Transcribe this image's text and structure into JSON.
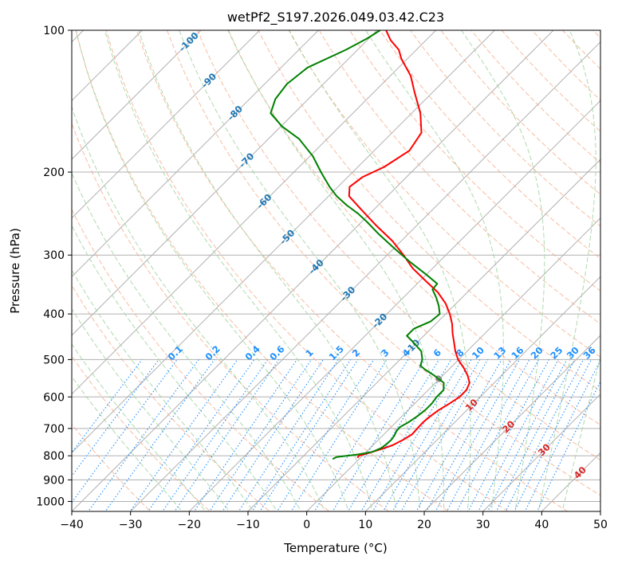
{
  "chart_data": {
    "type": "skew-t log-p",
    "title": "wetPf2_S197.2026.049.03.42.C23",
    "xlabel": "Temperature (°C)",
    "ylabel": "Pressure (hPa)",
    "xlim": [
      -40,
      50
    ],
    "ylim_hpa": [
      1050,
      100
    ],
    "x_ticks": [
      "−40",
      "−30",
      "−20",
      "−10",
      "0",
      "10",
      "20",
      "30",
      "40",
      "50"
    ],
    "x_tick_values": [
      -40,
      -30,
      -20,
      -10,
      0,
      10,
      20,
      30,
      40,
      50
    ],
    "y_ticks": [
      "100",
      "200",
      "300",
      "400",
      "500",
      "600",
      "700",
      "800",
      "900",
      "1000"
    ],
    "y_tick_values": [
      100,
      200,
      300,
      400,
      500,
      600,
      700,
      800,
      900,
      1000
    ],
    "grid": true,
    "series": [
      {
        "name": "temperature",
        "color": "#ff0000",
        "points": [
          {
            "p": 808,
            "t": -0.5
          },
          {
            "p": 800,
            "t": -0.6
          },
          {
            "p": 790,
            "t": 0.5
          },
          {
            "p": 775,
            "t": 2.0
          },
          {
            "p": 760,
            "t": 3.3
          },
          {
            "p": 740,
            "t": 4.2
          },
          {
            "p": 720,
            "t": 4.8
          },
          {
            "p": 700,
            "t": 4.7
          },
          {
            "p": 680,
            "t": 4.6
          },
          {
            "p": 660,
            "t": 4.8
          },
          {
            "p": 640,
            "t": 5.2
          },
          {
            "p": 620,
            "t": 5.9
          },
          {
            "p": 600,
            "t": 6.5
          },
          {
            "p": 580,
            "t": 6.5
          },
          {
            "p": 560,
            "t": 5.8
          },
          {
            "p": 540,
            "t": 4.2
          },
          {
            "p": 520,
            "t": 2.2
          },
          {
            "p": 500,
            "t": -0.1
          },
          {
            "p": 480,
            "t": -2.0
          },
          {
            "p": 460,
            "t": -3.7
          },
          {
            "p": 440,
            "t": -5.5
          },
          {
            "p": 420,
            "t": -7.2
          },
          {
            "p": 400,
            "t": -9.3
          },
          {
            "p": 380,
            "t": -11.8
          },
          {
            "p": 360,
            "t": -15.0
          },
          {
            "p": 340,
            "t": -19.1
          },
          {
            "p": 320,
            "t": -23.4
          },
          {
            "p": 300,
            "t": -27.2
          },
          {
            "p": 280,
            "t": -31.5
          },
          {
            "p": 260,
            "t": -36.8
          },
          {
            "p": 240,
            "t": -42.2
          },
          {
            "p": 225,
            "t": -46.5
          },
          {
            "p": 215,
            "t": -48.0
          },
          {
            "p": 205,
            "t": -47.5
          },
          {
            "p": 195,
            "t": -45.5
          },
          {
            "p": 180,
            "t": -44.0
          },
          {
            "p": 165,
            "t": -45.0
          },
          {
            "p": 150,
            "t": -48.5
          },
          {
            "p": 135,
            "t": -53.2
          },
          {
            "p": 125,
            "t": -56.5
          },
          {
            "p": 115,
            "t": -61.0
          },
          {
            "p": 110,
            "t": -63.0
          },
          {
            "p": 105,
            "t": -66.0
          },
          {
            "p": 100,
            "t": -68.5
          }
        ]
      },
      {
        "name": "dewpoint",
        "color": "#008000",
        "points": [
          {
            "p": 813,
            "t": -4.5
          },
          {
            "p": 805,
            "t": -4.2
          },
          {
            "p": 795,
            "t": -1.0
          },
          {
            "p": 785,
            "t": 1.0
          },
          {
            "p": 770,
            "t": 1.9
          },
          {
            "p": 755,
            "t": 2.1
          },
          {
            "p": 740,
            "t": 2.2
          },
          {
            "p": 725,
            "t": 2.0
          },
          {
            "p": 710,
            "t": 1.6
          },
          {
            "p": 695,
            "t": 1.5
          },
          {
            "p": 680,
            "t": 2.1
          },
          {
            "p": 660,
            "t": 2.6
          },
          {
            "p": 640,
            "t": 2.9
          },
          {
            "p": 620,
            "t": 2.9
          },
          {
            "p": 600,
            "t": 2.6
          },
          {
            "p": 580,
            "t": 2.6
          },
          {
            "p": 560,
            "t": 1.4
          },
          {
            "p": 540,
            "t": -1.5
          },
          {
            "p": 525,
            "t": -4.0
          },
          {
            "p": 515,
            "t": -5.5
          },
          {
            "p": 500,
            "t": -6.2
          },
          {
            "p": 480,
            "t": -7.8
          },
          {
            "p": 460,
            "t": -10.6
          },
          {
            "p": 445,
            "t": -12.9
          },
          {
            "p": 430,
            "t": -12.9
          },
          {
            "p": 415,
            "t": -11.3
          },
          {
            "p": 400,
            "t": -11.0
          },
          {
            "p": 385,
            "t": -12.5
          },
          {
            "p": 370,
            "t": -14.3
          },
          {
            "p": 355,
            "t": -16.4
          },
          {
            "p": 345,
            "t": -16.6
          },
          {
            "p": 330,
            "t": -20.0
          },
          {
            "p": 310,
            "t": -25.0
          },
          {
            "p": 290,
            "t": -30.0
          },
          {
            "p": 270,
            "t": -35.2
          },
          {
            "p": 255,
            "t": -39.1
          },
          {
            "p": 245,
            "t": -42.0
          },
          {
            "p": 235,
            "t": -45.4
          },
          {
            "p": 225,
            "t": -48.6
          },
          {
            "p": 215,
            "t": -51.4
          },
          {
            "p": 200,
            "t": -55.4
          },
          {
            "p": 185,
            "t": -59.5
          },
          {
            "p": 170,
            "t": -64.8
          },
          {
            "p": 160,
            "t": -69.8
          },
          {
            "p": 150,
            "t": -74.0
          },
          {
            "p": 140,
            "t": -75.6
          },
          {
            "p": 130,
            "t": -76.2
          },
          {
            "p": 120,
            "t": -75.5
          },
          {
            "p": 110,
            "t": -72.0
          },
          {
            "p": 104,
            "t": -70.3
          },
          {
            "p": 100,
            "t": -69.5
          }
        ]
      }
    ],
    "isotherm_labels": {
      "color": "#1f77b4",
      "items": [
        {
          "text": "-100",
          "t": -100
        },
        {
          "text": "-90",
          "t": -90
        },
        {
          "text": "-80",
          "t": -80
        },
        {
          "text": "-70",
          "t": -70
        },
        {
          "text": "-60",
          "t": -60
        },
        {
          "text": "-50",
          "t": -50
        },
        {
          "text": "-40",
          "t": -40
        },
        {
          "text": "-30",
          "t": -30
        },
        {
          "text": "-20",
          "t": -20
        },
        {
          "text": "-10",
          "t": -10
        }
      ]
    },
    "mixing_ratio_labels": {
      "color": "#1e90ff",
      "pressure_hpa": 500,
      "items": [
        {
          "text": "0.1",
          "w": 0.1
        },
        {
          "text": "0.2",
          "w": 0.2
        },
        {
          "text": "0.4",
          "w": 0.4
        },
        {
          "text": "0.6",
          "w": 0.6
        },
        {
          "text": "1",
          "w": 1
        },
        {
          "text": "1.5",
          "w": 1.5
        },
        {
          "text": "2",
          "w": 2
        },
        {
          "text": "3",
          "w": 3
        },
        {
          "text": "4",
          "w": 4
        },
        {
          "text": "6",
          "w": 6
        },
        {
          "text": "8",
          "w": 8
        },
        {
          "text": "10",
          "w": 10
        },
        {
          "text": "13",
          "w": 13
        },
        {
          "text": "16",
          "w": 16
        },
        {
          "text": "20",
          "w": 20
        },
        {
          "text": "25",
          "w": 25
        },
        {
          "text": "30",
          "w": 30
        },
        {
          "text": "36",
          "w": 36
        }
      ]
    },
    "warm_isotherm_labels": {
      "items": [
        {
          "text": "0",
          "t": 0,
          "color": "#808080"
        },
        {
          "text": "10",
          "t": 10,
          "color": "#d62728"
        },
        {
          "text": "20",
          "t": 20,
          "color": "#d62728"
        },
        {
          "text": "30",
          "t": 30,
          "color": "#d62728"
        },
        {
          "text": "40",
          "t": 40,
          "color": "#d62728"
        }
      ]
    },
    "colors": {
      "grid": "#b0b0b0",
      "dry_adiabat": "#f4a582",
      "moist_adiabat": "#9fd39f",
      "mixing_ratio": "#1e90ff",
      "frame": "#000000"
    }
  }
}
